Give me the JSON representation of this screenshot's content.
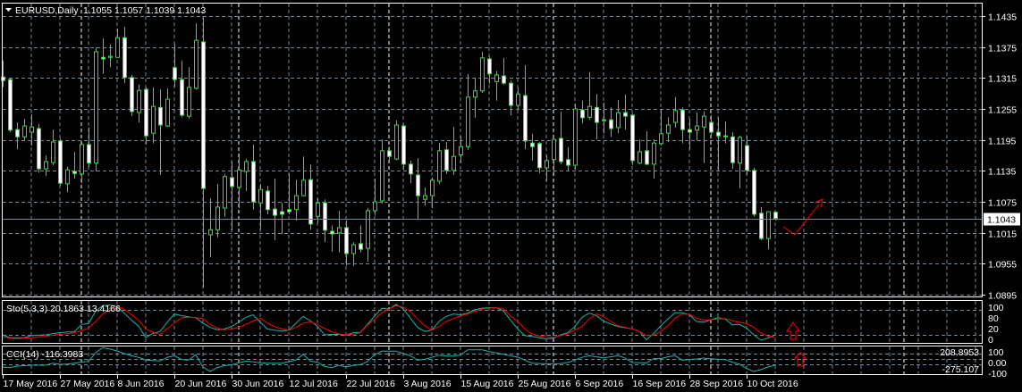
{
  "header": {
    "menu_icon": "triangle-down-icon",
    "symbol_timeframe": "EURUSD,Daily",
    "ohlc": "1.1055 1.1057 1.1039 1.1043"
  },
  "current_price_label": "1.1043",
  "colors": {
    "background": "#000000",
    "grid": "#778899",
    "candle_outline": "#00ff00",
    "bull_body": "#000000",
    "bear_body": "#ffffff",
    "stoch_main": "#20b2aa",
    "stoch_signal": "#ff0000",
    "cci": "#20b2aa",
    "drawing": "#ff0000"
  },
  "chart_data": [
    {
      "type": "candlestick",
      "title": "EURUSD,Daily",
      "grid": true,
      "ylim": [
        1.0895,
        1.1435
      ],
      "price_axis": {
        "ticks": [
          "1.1435",
          "1.1375",
          "1.1315",
          "1.1255",
          "1.1195",
          "1.1135",
          "1.1075",
          "1.1015",
          "1.0955",
          "1.0895"
        ]
      },
      "x_ticks": [
        {
          "bar": 0,
          "label": "17 May 2016"
        },
        {
          "bar": 8,
          "label": "27 May 2016"
        },
        {
          "bar": 16,
          "label": "8 Jun 2016"
        },
        {
          "bar": 24,
          "label": "20 Jun 2016"
        },
        {
          "bar": 32,
          "label": "30 Jun 2016"
        },
        {
          "bar": 40,
          "label": "12 Jul 2016"
        },
        {
          "bar": 48,
          "label": "22 Jul 2016"
        },
        {
          "bar": 56,
          "label": "3 Aug 2016"
        },
        {
          "bar": 64,
          "label": "15 Aug 2016"
        },
        {
          "bar": 72,
          "label": "25 Aug 2016"
        },
        {
          "bar": 80,
          "label": "6 Sep 2016"
        },
        {
          "bar": 88,
          "label": "16 Sep 2016"
        },
        {
          "bar": 96,
          "label": "28 Sep 2016"
        },
        {
          "bar": 104,
          "label": "10 Oct 2016"
        }
      ],
      "period_separators_at_bar": [
        11,
        33,
        54,
        77,
        99,
        126
      ],
      "ohlc_fields": [
        "open",
        "high",
        "low",
        "close"
      ],
      "candles": [
        [
          1.1317,
          1.1349,
          1.1298,
          1.131
        ],
        [
          1.1312,
          1.1316,
          1.121,
          1.1214
        ],
        [
          1.1215,
          1.1229,
          1.1177,
          1.1201
        ],
        [
          1.1201,
          1.1236,
          1.1194,
          1.1222
        ],
        [
          1.121,
          1.1245,
          1.1184,
          1.122
        ],
        [
          1.1217,
          1.1226,
          1.1132,
          1.1139
        ],
        [
          1.1139,
          1.1165,
          1.1125,
          1.1153
        ],
        [
          1.1151,
          1.1215,
          1.1146,
          1.1191
        ],
        [
          1.1193,
          1.1198,
          1.1106,
          1.1111
        ],
        [
          1.111,
          1.1143,
          1.1094,
          1.1137
        ],
        [
          1.1134,
          1.1172,
          1.112,
          1.113
        ],
        [
          1.1129,
          1.1193,
          1.1111,
          1.1186
        ],
        [
          1.1186,
          1.1219,
          1.1143,
          1.115
        ],
        [
          1.115,
          1.1374,
          1.1134,
          1.1366
        ],
        [
          1.1355,
          1.1392,
          1.1323,
          1.1352
        ],
        [
          1.1355,
          1.138,
          1.1336,
          1.1357
        ],
        [
          1.1355,
          1.1411,
          1.1354,
          1.1393
        ],
        [
          1.1393,
          1.1414,
          1.1305,
          1.1316
        ],
        [
          1.1316,
          1.1321,
          1.1241,
          1.125
        ],
        [
          1.1248,
          1.1302,
          1.1229,
          1.1291
        ],
        [
          1.1293,
          1.1297,
          1.1186,
          1.1203
        ],
        [
          1.1208,
          1.1297,
          1.1188,
          1.126
        ],
        [
          1.1258,
          1.1293,
          1.1127,
          1.1224
        ],
        [
          1.1222,
          1.1295,
          1.122,
          1.1274
        ],
        [
          1.1335,
          1.1381,
          1.1298,
          1.1312
        ],
        [
          1.1312,
          1.1349,
          1.1239,
          1.1243
        ],
        [
          1.1241,
          1.1336,
          1.1236,
          1.1297
        ],
        [
          1.1295,
          1.1421,
          1.1293,
          1.1388
        ],
        [
          1.1385,
          1.1432,
          1.0909,
          1.1101
        ],
        [
          1.1011,
          1.1082,
          1.0968,
          1.1021
        ],
        [
          1.1021,
          1.111,
          1.1006,
          1.1065
        ],
        [
          1.1063,
          1.1129,
          1.1046,
          1.1124
        ],
        [
          1.1122,
          1.1153,
          1.102,
          1.1105
        ],
        [
          1.1103,
          1.1169,
          1.1063,
          1.1137
        ],
        [
          1.1134,
          1.1158,
          1.1096,
          1.1153
        ],
        [
          1.1153,
          1.1186,
          1.106,
          1.1075
        ],
        [
          1.1073,
          1.111,
          1.1021,
          1.1099
        ],
        [
          1.1096,
          1.1106,
          1.1051,
          1.106
        ],
        [
          1.1061,
          1.112,
          1.1001,
          1.1049
        ],
        [
          1.1056,
          1.1073,
          1.1013,
          1.1051
        ],
        [
          1.106,
          1.113,
          1.1051,
          1.1056
        ],
        [
          1.106,
          1.1118,
          1.1039,
          1.1087
        ],
        [
          1.1087,
          1.1163,
          1.1085,
          1.1117
        ],
        [
          1.1118,
          1.1148,
          1.1021,
          1.1032
        ],
        [
          1.1047,
          1.1082,
          1.1034,
          1.1073
        ],
        [
          1.1073,
          1.108,
          1.0997,
          1.102
        ],
        [
          1.1018,
          1.1029,
          1.0978,
          1.1013
        ],
        [
          1.1015,
          1.1058,
          1.0977,
          1.1025
        ],
        [
          1.1025,
          1.1039,
          1.0952,
          1.0975
        ],
        [
          1.0975,
          1.0997,
          1.0951,
          1.0992
        ],
        [
          1.0994,
          1.1029,
          1.0977,
          1.0983
        ],
        [
          1.0985,
          1.1063,
          1.0959,
          1.1058
        ],
        [
          1.1058,
          1.112,
          1.1049,
          1.1075
        ],
        [
          1.1077,
          1.1196,
          1.1072,
          1.1174
        ],
        [
          1.1174,
          1.1182,
          1.1155,
          1.1163
        ],
        [
          1.1158,
          1.1233,
          1.1156,
          1.1224
        ],
        [
          1.1222,
          1.1226,
          1.1137,
          1.1148
        ],
        [
          1.1148,
          1.1155,
          1.1111,
          1.1129
        ],
        [
          1.1127,
          1.116,
          1.1042,
          1.1087
        ],
        [
          1.108,
          1.1103,
          1.1068,
          1.1087
        ],
        [
          1.1087,
          1.1122,
          1.1063,
          1.1117
        ],
        [
          1.1115,
          1.1189,
          1.111,
          1.1174
        ],
        [
          1.1176,
          1.1191,
          1.1129,
          1.1136
        ],
        [
          1.1136,
          1.122,
          1.1127,
          1.1163
        ],
        [
          1.1166,
          1.1203,
          1.115,
          1.1182
        ],
        [
          1.1182,
          1.1323,
          1.1176,
          1.1278
        ],
        [
          1.1278,
          1.1316,
          1.1238,
          1.129
        ],
        [
          1.129,
          1.1366,
          1.1286,
          1.1354
        ],
        [
          1.1352,
          1.1357,
          1.1304,
          1.1323
        ],
        [
          1.1308,
          1.1329,
          1.1271,
          1.1321
        ],
        [
          1.1319,
          1.1354,
          1.1302,
          1.1305
        ],
        [
          1.1305,
          1.131,
          1.1243,
          1.1262
        ],
        [
          1.1262,
          1.1297,
          1.1255,
          1.1284
        ],
        [
          1.1281,
          1.134,
          1.1177,
          1.1193
        ],
        [
          1.1189,
          1.1207,
          1.1155,
          1.1182
        ],
        [
          1.1188,
          1.1191,
          1.113,
          1.1141
        ],
        [
          1.1141,
          1.1165,
          1.1115,
          1.1155
        ],
        [
          1.1157,
          1.1198,
          1.1125,
          1.1196
        ],
        [
          1.1198,
          1.125,
          1.1148,
          1.1153
        ],
        [
          1.1157,
          1.1181,
          1.1136,
          1.1146
        ],
        [
          1.1146,
          1.1265,
          1.1137,
          1.1255
        ],
        [
          1.1253,
          1.1271,
          1.1227,
          1.1238
        ],
        [
          1.1239,
          1.1326,
          1.1234,
          1.126
        ],
        [
          1.1258,
          1.1284,
          1.1196,
          1.1229
        ],
        [
          1.1234,
          1.1267,
          1.1207,
          1.1233
        ],
        [
          1.1234,
          1.1258,
          1.1201,
          1.1217
        ],
        [
          1.1219,
          1.1272,
          1.1208,
          1.1248
        ],
        [
          1.1248,
          1.1283,
          1.1215,
          1.1241
        ],
        [
          1.1243,
          1.1246,
          1.1146,
          1.1155
        ],
        [
          1.115,
          1.1196,
          1.1148,
          1.1172
        ],
        [
          1.1174,
          1.1212,
          1.1146,
          1.1148
        ],
        [
          1.1148,
          1.1196,
          1.112,
          1.1189
        ],
        [
          1.1188,
          1.1255,
          1.1184,
          1.1207
        ],
        [
          1.1208,
          1.1239,
          1.1191,
          1.1224
        ],
        [
          1.1229,
          1.1278,
          1.1219,
          1.1252
        ],
        [
          1.1253,
          1.1258,
          1.1188,
          1.1215
        ],
        [
          1.1215,
          1.1236,
          1.1177,
          1.121
        ],
        [
          1.1214,
          1.1248,
          1.1194,
          1.1222
        ],
        [
          1.122,
          1.125,
          1.115,
          1.1241
        ],
        [
          1.1229,
          1.1243,
          1.1201,
          1.121
        ],
        [
          1.121,
          1.1238,
          1.1134,
          1.1203
        ],
        [
          1.1203,
          1.1231,
          1.1188,
          1.1201
        ],
        [
          1.1201,
          1.121,
          1.1139,
          1.1151
        ],
        [
          1.115,
          1.1203,
          1.1101,
          1.12
        ],
        [
          1.1184,
          1.1203,
          1.1127,
          1.1136
        ],
        [
          1.1136,
          1.1141,
          1.1046,
          1.1051
        ],
        [
          1.1053,
          1.1065,
          1.1001,
          1.1004
        ],
        [
          1.1004,
          1.1056,
          1.0983,
          1.1056
        ],
        [
          1.1055,
          1.1057,
          1.1039,
          1.1043
        ]
      ],
      "current_price": 1.1043
    },
    {
      "type": "line",
      "title": "Sto(5,3,3) 20.1863 13.4166",
      "ylim": [
        0,
        100
      ],
      "levels": [
        "100",
        "80",
        "20",
        "0"
      ],
      "series": [
        {
          "values": [
            20,
            13,
            13,
            13,
            18,
            19,
            20,
            23,
            25,
            27,
            27,
            45,
            47,
            77,
            90,
            91,
            88,
            72,
            55,
            41,
            14,
            23,
            28,
            50,
            70,
            66,
            63,
            61,
            48,
            38,
            32,
            34,
            40,
            50,
            62,
            68,
            50,
            34,
            31,
            29,
            31,
            48,
            64,
            54,
            40,
            20,
            21,
            21,
            19,
            25,
            26,
            45,
            65,
            84,
            82,
            93,
            82,
            60,
            38,
            28,
            31,
            52,
            64,
            70,
            68,
            72,
            80,
            84,
            85,
            85,
            77,
            55,
            34,
            18,
            16,
            13,
            10,
            12,
            20,
            25,
            40,
            62,
            72,
            66,
            53,
            46,
            40,
            37,
            34,
            28,
            8,
            23,
            42,
            58,
            73,
            73,
            68,
            52,
            50,
            56,
            61,
            58,
            44,
            45,
            36,
            20,
            7,
            12,
            20.1863
          ]
        },
        {
          "values": [
            16,
            12,
            11,
            12,
            13,
            15,
            16,
            19,
            21,
            23,
            25,
            30,
            36,
            52,
            70,
            84,
            88,
            81,
            68,
            55,
            34,
            26,
            21,
            35,
            48,
            61,
            62,
            61,
            59,
            45,
            36,
            32,
            34,
            38,
            45,
            53,
            60,
            48,
            40,
            34,
            31,
            38,
            48,
            51,
            45,
            35,
            27,
            22,
            20,
            21,
            25,
            43,
            58,
            73,
            82,
            90,
            86,
            76,
            58,
            42,
            31,
            40,
            52,
            59,
            65,
            70,
            76,
            82,
            84,
            85,
            82,
            65,
            52,
            34,
            22,
            17,
            15,
            14,
            18,
            23,
            32,
            40,
            58,
            70,
            64,
            52,
            42,
            38,
            34,
            28,
            18,
            19,
            28,
            42,
            60,
            70,
            69,
            60,
            55,
            56,
            58,
            59,
            54,
            50,
            47,
            38,
            24,
            17,
            13.4166
          ]
        }
      ]
    },
    {
      "type": "line",
      "title": "CCI(14) -116.3983",
      "levels": [
        "208.8953",
        "100",
        "0.00",
        "-100",
        "-275.107"
      ],
      "series": [
        {
          "values": [
            -150,
            -161,
            -133,
            -125,
            -117,
            -117,
            -117,
            -80,
            -100,
            -95,
            -78,
            -60,
            -45,
            117,
            209,
            185,
            150,
            100,
            60,
            30,
            -20,
            -30,
            -39,
            30,
            60,
            -10,
            -20,
            80,
            -150,
            -233,
            -160,
            -125,
            -110,
            -70,
            -40,
            -55,
            -70,
            -78,
            -78,
            -78,
            -50,
            -22,
            89,
            -40,
            -61,
            -140,
            -161,
            -117,
            -150,
            -120,
            -106,
            -50,
            80,
            145,
            145,
            145,
            100,
            60,
            -22,
            -6,
            30,
            72,
            55,
            55,
            72,
            172,
            172,
            172,
            140,
            115,
            89,
            60,
            33,
            -22,
            -78,
            -85,
            -90,
            -95,
            -85,
            -67,
            -20,
            30,
            61,
            40,
            22,
            40,
            61,
            20,
            -67,
            -70,
            -75,
            6,
            6,
            40,
            61,
            -22,
            -10,
            0,
            17,
            5,
            -5,
            -11,
            -60,
            -95,
            -180,
            -233,
            -200,
            -150,
            -116.3983
          ]
        }
      ]
    }
  ]
}
